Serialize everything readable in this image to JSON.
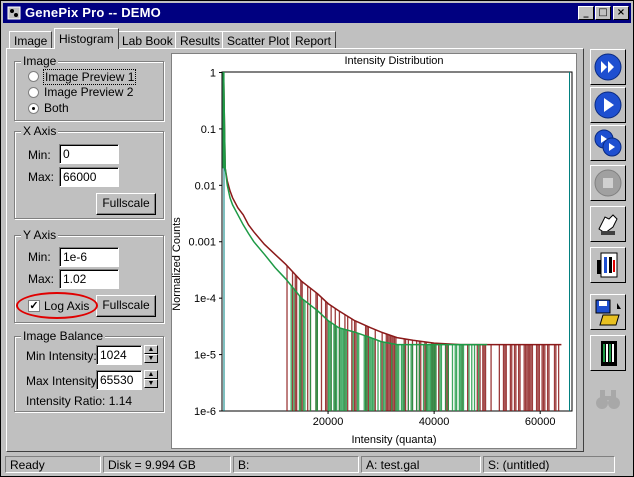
{
  "window": {
    "title": "GenePix Pro -- DEMO"
  },
  "tabs": [
    "Image",
    "Histogram",
    "Lab Book",
    "Results",
    "Scatter Plot",
    "Report"
  ],
  "active_tab": "Histogram",
  "image_group": {
    "label": "Image",
    "options": [
      "Image Preview 1",
      "Image Preview 2",
      "Both"
    ],
    "selected": "Both"
  },
  "x_axis_group": {
    "label": "X Axis",
    "min_label": "Min:",
    "min_value": "0",
    "max_label": "Max:",
    "max_value": "66000",
    "fullscale_label": "Fullscale"
  },
  "y_axis_group": {
    "label": "Y Axis",
    "min_label": "Min:",
    "min_value": "1e-6",
    "max_label": "Max:",
    "max_value": "1.02",
    "log_axis_label": "Log Axis",
    "log_axis_checked": true,
    "fullscale_label": "Fullscale"
  },
  "image_balance": {
    "label": "Image Balance",
    "min_label": "Min Intensity:",
    "min_value": "1024",
    "max_label": "Max Intensity:",
    "max_value": "65530",
    "ratio_label": "Intensity Ratio: 1.14"
  },
  "statusbar": {
    "ready": "Ready",
    "disk": "Disk = 9.994 GB",
    "b": "B:",
    "a": "A: test.gal",
    "s": "S: (untitled)"
  },
  "colors": {
    "title_bg": "#000080",
    "series_red": "#8b1a1a",
    "series_green": "#1e9a46",
    "guide_teal": "#008080",
    "highlight": "#e00000"
  },
  "sidebar_icons": [
    "fast-scan-icon",
    "play-icon",
    "step-scan-icon",
    "stop-icon",
    "hand-tool-icon",
    "analysis-icon",
    "save-open-icon",
    "barcode-icon",
    "binoculars-icon"
  ],
  "chart_data": {
    "type": "line",
    "title": "Intensity Distribution",
    "xlabel": "Intensity (quanta)",
    "ylabel": "Normalized Counts",
    "xlim": [
      0,
      66000
    ],
    "ylim": [
      1e-06,
      1.02
    ],
    "yscale": "log",
    "x_ticks": [
      "20000",
      "40000",
      "60000"
    ],
    "y_ticks": [
      "1",
      "0.1",
      "0.01",
      "0.001",
      "1e-4",
      "1e-5",
      "1e-6"
    ],
    "series": [
      {
        "name": "",
        "color": "#8b1a1a",
        "x": [
          300,
          600,
          1000,
          1500,
          2000,
          3000,
          4000,
          5000,
          6000,
          8000,
          10000,
          12000,
          15000,
          18000,
          20000,
          22000,
          25000,
          28000,
          30000,
          33000,
          36000,
          40000,
          45000,
          50000,
          55000,
          60000,
          64000
        ],
        "y": [
          1,
          0.02,
          0.012,
          0.008,
          0.006,
          0.004,
          0.003,
          0.002,
          0.0015,
          0.0009,
          0.0006,
          0.0004,
          0.0002,
          0.00012,
          8e-05,
          6e-05,
          4e-05,
          3e-05,
          2.5e-05,
          2e-05,
          1.8e-05,
          1.6e-05,
          1.5e-05,
          1.5e-05,
          1.5e-05,
          1.5e-05,
          1.5e-05
        ]
      },
      {
        "name": "",
        "color": "#1e9a46",
        "x": [
          300,
          600,
          1000,
          1500,
          2000,
          3000,
          4000,
          5000,
          6000,
          8000,
          10000,
          12000,
          15000,
          18000,
          20000,
          22000,
          25000,
          28000,
          30000,
          33000,
          36000,
          40000,
          45000,
          50000
        ],
        "y": [
          1,
          0.02,
          0.01,
          0.006,
          0.0045,
          0.003,
          0.002,
          0.0014,
          0.001,
          0.0006,
          0.00035,
          0.00022,
          0.0001,
          6e-05,
          4e-05,
          3e-05,
          2.5e-05,
          2e-05,
          1.7e-05,
          1.5e-05,
          1.5e-05,
          1.5e-05,
          1.5e-05,
          1.5e-05
        ]
      }
    ]
  }
}
